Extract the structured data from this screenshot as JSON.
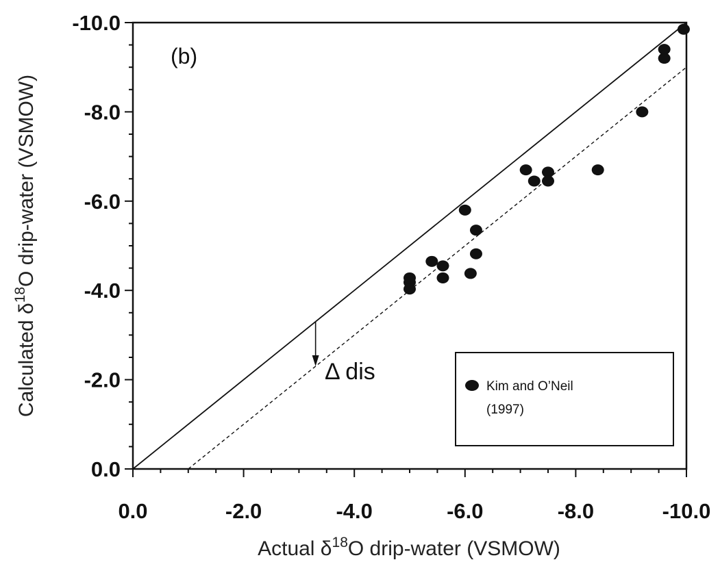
{
  "chart_data": {
    "type": "scatter",
    "panel_label": "(b)",
    "xlabel": {
      "pre": "Actual δ",
      "sup": "18",
      "post": "O drip-water (VSMOW)"
    },
    "ylabel": {
      "pre": "Calculated δ",
      "sup": "18",
      "post": "O drip-water (VSMOW)"
    },
    "xlim": [
      0,
      -10
    ],
    "ylim": [
      0,
      -10
    ],
    "x_ticks": [
      {
        "value": 0,
        "label": "0.0"
      },
      {
        "value": -2,
        "label": "-2.0"
      },
      {
        "value": -4,
        "label": "-4.0"
      },
      {
        "value": -6,
        "label": "-6.0"
      },
      {
        "value": -8,
        "label": "-8.0"
      },
      {
        "value": -10,
        "label": "-10.0"
      }
    ],
    "y_ticks": [
      {
        "value": 0,
        "label": "0.0"
      },
      {
        "value": -2,
        "label": "-2.0"
      },
      {
        "value": -4,
        "label": "-4.0"
      },
      {
        "value": -6,
        "label": "-6.0"
      },
      {
        "value": -8,
        "label": "-8.0"
      },
      {
        "value": -10,
        "label": "-10.0"
      }
    ],
    "minor_tick_step": 0.5,
    "series": [
      {
        "name": "Kim and O’Neil (1997)",
        "legend_lines": [
          "Kim and O’Neil",
          "(1997)"
        ],
        "points": [
          {
            "x": -5.0,
            "y": -4.28
          },
          {
            "x": -5.0,
            "y": -4.18
          },
          {
            "x": -5.0,
            "y": -4.03
          },
          {
            "x": -5.4,
            "y": -4.65
          },
          {
            "x": -5.6,
            "y": -4.55
          },
          {
            "x": -5.6,
            "y": -4.28
          },
          {
            "x": -6.0,
            "y": -5.8
          },
          {
            "x": -6.1,
            "y": -4.38
          },
          {
            "x": -6.2,
            "y": -5.35
          },
          {
            "x": -6.2,
            "y": -4.82
          },
          {
            "x": -7.1,
            "y": -6.7
          },
          {
            "x": -7.25,
            "y": -6.45
          },
          {
            "x": -7.5,
            "y": -6.65
          },
          {
            "x": -7.5,
            "y": -6.45
          },
          {
            "x": -8.4,
            "y": -6.7
          },
          {
            "x": -9.2,
            "y": -8.0
          },
          {
            "x": -9.6,
            "y": -9.4
          },
          {
            "x": -9.6,
            "y": -9.2
          },
          {
            "x": -9.95,
            "y": -9.85
          }
        ]
      }
    ],
    "lines": [
      {
        "name": "one-to-one",
        "style": "solid",
        "from": [
          0,
          0
        ],
        "to": [
          -10,
          -10
        ]
      },
      {
        "name": "offset",
        "style": "dashed",
        "from": [
          -1,
          0
        ],
        "to": [
          -10,
          -9
        ]
      }
    ],
    "annotation": {
      "text": "Δ dis",
      "arrow_x": -3.3,
      "arrow_from_y": -3.3,
      "arrow_to_y": -2.3
    },
    "legend": {
      "placement": "bottom-right"
    },
    "grid": false
  }
}
